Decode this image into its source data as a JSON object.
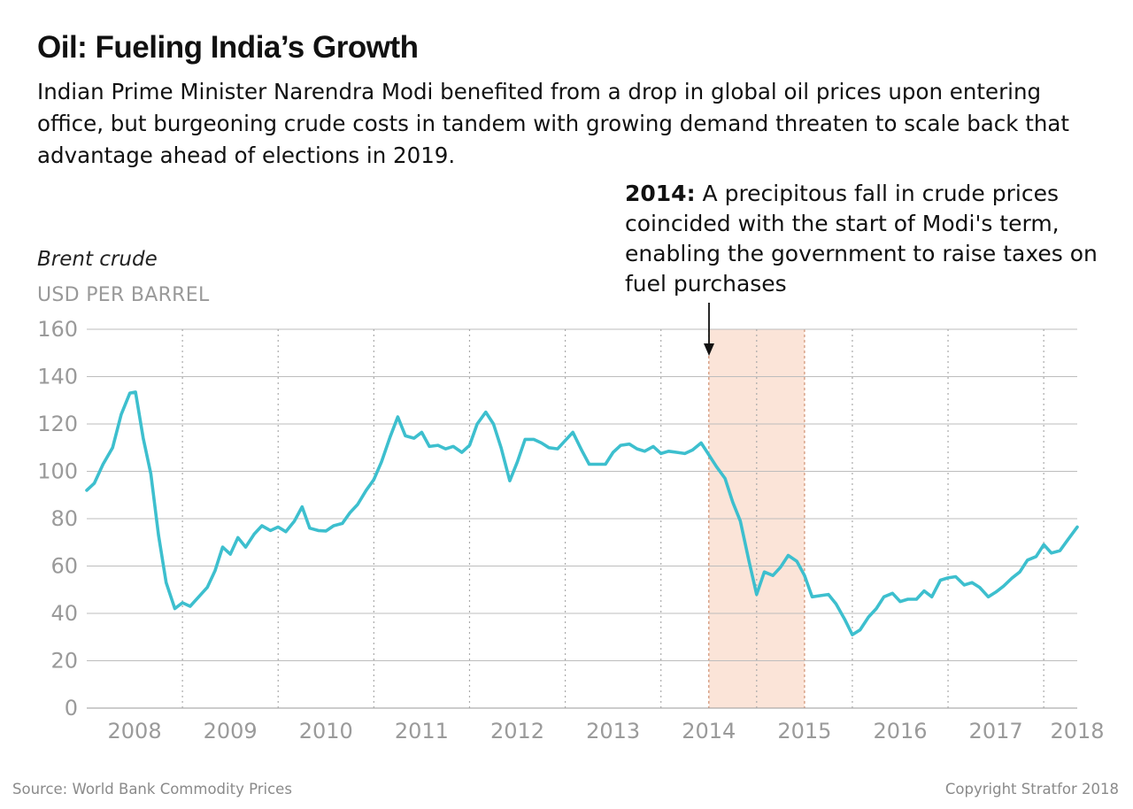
{
  "header": {
    "title": "Oil: Fueling India’s Growth",
    "subtitle": "Indian Prime Minister Narendra Modi benefited from a drop in global oil prices upon entering office, but burgeoning crude costs in tandem with growing demand threaten to scale back that advantage ahead of elections in 2019."
  },
  "annotation": {
    "bold": "2014:",
    "text": " A precipitous fall in crude prices coincided with the start of Modi's term, enabling the government to raise taxes on fuel purchases"
  },
  "footer": {
    "source": "Source: World Bank Commodity Prices",
    "copyright": "Copyright Stratfor 2018"
  },
  "colors": {
    "line": "#3dbfce",
    "highlight": "#fbe4d8",
    "highlight_edge": "#d9a48a",
    "grid": "#bdbdbd",
    "axis_text": "#9a9a9a"
  },
  "chart_data": {
    "type": "line",
    "title": "Oil: Fueling India’s Growth",
    "ylabel": "Brent crude",
    "yunit": "USD PER BARREL",
    "ylim": [
      0,
      160
    ],
    "yticks": [
      0,
      20,
      40,
      60,
      80,
      100,
      120,
      140,
      160
    ],
    "xlim": [
      2007.95,
      2018.3
    ],
    "year_labels": [
      {
        "label": "2008",
        "x": 2008.45
      },
      {
        "label": "2009",
        "x": 2009.45
      },
      {
        "label": "2010",
        "x": 2010.45
      },
      {
        "label": "2011",
        "x": 2011.45
      },
      {
        "label": "2012",
        "x": 2012.45
      },
      {
        "label": "2013",
        "x": 2013.45
      },
      {
        "label": "2014",
        "x": 2014.45
      },
      {
        "label": "2015",
        "x": 2015.45
      },
      {
        "label": "2016",
        "x": 2016.45
      },
      {
        "label": "2017",
        "x": 2017.45
      },
      {
        "label": "2018",
        "x": 2018.3
      }
    ],
    "year_dividers": [
      2008.95,
      2009.95,
      2010.95,
      2011.95,
      2012.95,
      2013.95,
      2014.95,
      2015.95,
      2016.95,
      2017.95
    ],
    "highlight": {
      "start": 2014.45,
      "end": 2015.45
    },
    "grid": true,
    "series": [
      {
        "points": [
          [
            2007.95,
            92
          ],
          [
            2008.03,
            95
          ],
          [
            2008.12,
            103
          ],
          [
            2008.22,
            110
          ],
          [
            2008.31,
            124
          ],
          [
            2008.4,
            133
          ],
          [
            2008.46,
            133.5
          ],
          [
            2008.54,
            114
          ],
          [
            2008.62,
            99
          ],
          [
            2008.7,
            73
          ],
          [
            2008.78,
            53
          ],
          [
            2008.87,
            42
          ],
          [
            2008.95,
            44.5
          ],
          [
            2009.03,
            43
          ],
          [
            2009.12,
            47
          ],
          [
            2009.21,
            51
          ],
          [
            2009.29,
            58
          ],
          [
            2009.37,
            68
          ],
          [
            2009.45,
            65
          ],
          [
            2009.53,
            72
          ],
          [
            2009.61,
            68
          ],
          [
            2009.7,
            73.5
          ],
          [
            2009.78,
            77
          ],
          [
            2009.87,
            75
          ],
          [
            2009.95,
            76.5
          ],
          [
            2010.03,
            74.5
          ],
          [
            2010.12,
            79
          ],
          [
            2010.2,
            85
          ],
          [
            2010.28,
            76
          ],
          [
            2010.37,
            75
          ],
          [
            2010.45,
            74.8
          ],
          [
            2010.53,
            77
          ],
          [
            2010.62,
            78
          ],
          [
            2010.7,
            82.5
          ],
          [
            2010.78,
            86
          ],
          [
            2010.87,
            92
          ],
          [
            2010.95,
            96.5
          ],
          [
            2011.03,
            104
          ],
          [
            2011.12,
            114.5
          ],
          [
            2011.2,
            123
          ],
          [
            2011.28,
            115
          ],
          [
            2011.37,
            114
          ],
          [
            2011.45,
            116.5
          ],
          [
            2011.53,
            110.5
          ],
          [
            2011.62,
            111
          ],
          [
            2011.7,
            109.5
          ],
          [
            2011.78,
            110.5
          ],
          [
            2011.87,
            108
          ],
          [
            2011.95,
            111
          ],
          [
            2012.03,
            120
          ],
          [
            2012.12,
            125
          ],
          [
            2012.2,
            120
          ],
          [
            2012.28,
            110
          ],
          [
            2012.37,
            96
          ],
          [
            2012.45,
            104
          ],
          [
            2012.53,
            113.5
          ],
          [
            2012.62,
            113.5
          ],
          [
            2012.7,
            112
          ],
          [
            2012.78,
            110
          ],
          [
            2012.87,
            109.5
          ],
          [
            2012.95,
            113
          ],
          [
            2013.03,
            116.5
          ],
          [
            2013.12,
            109
          ],
          [
            2013.2,
            103
          ],
          [
            2013.28,
            103
          ],
          [
            2013.37,
            103
          ],
          [
            2013.45,
            108
          ],
          [
            2013.53,
            111
          ],
          [
            2013.62,
            111.5
          ],
          [
            2013.7,
            109.5
          ],
          [
            2013.78,
            108.5
          ],
          [
            2013.87,
            110.5
          ],
          [
            2013.95,
            107.5
          ],
          [
            2014.03,
            108.5
          ],
          [
            2014.12,
            108
          ],
          [
            2014.2,
            107.5
          ],
          [
            2014.28,
            109
          ],
          [
            2014.37,
            112
          ],
          [
            2014.45,
            107
          ],
          [
            2014.53,
            102
          ],
          [
            2014.62,
            97
          ],
          [
            2014.7,
            87
          ],
          [
            2014.78,
            79
          ],
          [
            2014.87,
            62
          ],
          [
            2014.95,
            48
          ],
          [
            2015.03,
            57.5
          ],
          [
            2015.12,
            56
          ],
          [
            2015.2,
            59.5
          ],
          [
            2015.28,
            64.5
          ],
          [
            2015.37,
            62
          ],
          [
            2015.45,
            56
          ],
          [
            2015.53,
            47
          ],
          [
            2015.62,
            47.5
          ],
          [
            2015.7,
            48
          ],
          [
            2015.78,
            44
          ],
          [
            2015.87,
            37.5
          ],
          [
            2015.95,
            31
          ],
          [
            2016.03,
            33
          ],
          [
            2016.12,
            38.5
          ],
          [
            2016.2,
            42
          ],
          [
            2016.28,
            47
          ],
          [
            2016.37,
            48.5
          ],
          [
            2016.45,
            45
          ],
          [
            2016.53,
            46
          ],
          [
            2016.62,
            46
          ],
          [
            2016.7,
            49.5
          ],
          [
            2016.78,
            47
          ],
          [
            2016.87,
            54
          ],
          [
            2016.95,
            55
          ],
          [
            2017.03,
            55.5
          ],
          [
            2017.12,
            52
          ],
          [
            2017.2,
            53
          ],
          [
            2017.28,
            51
          ],
          [
            2017.37,
            47
          ],
          [
            2017.45,
            49
          ],
          [
            2017.53,
            51.5
          ],
          [
            2017.62,
            55
          ],
          [
            2017.7,
            57.5
          ],
          [
            2017.78,
            62.5
          ],
          [
            2017.87,
            64
          ],
          [
            2017.95,
            69
          ],
          [
            2018.03,
            65.5
          ],
          [
            2018.12,
            66.5
          ],
          [
            2018.2,
            71
          ],
          [
            2018.3,
            76.5
          ]
        ]
      }
    ]
  }
}
